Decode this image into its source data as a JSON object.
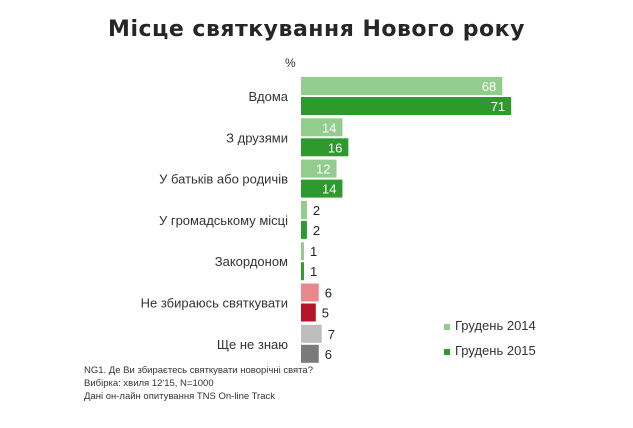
{
  "chart_data": {
    "type": "bar",
    "orientation": "horizontal",
    "title": "Місце святкування Нового року",
    "unit_label": "%",
    "categories": [
      "Вдома",
      "З друзями",
      "У батьків або родичів",
      "У громадському місці",
      "Закордоном",
      "Не збираюсь святкувати",
      "Ще не знаю"
    ],
    "series": [
      {
        "name": "Грудень 2014",
        "values": [
          68,
          14,
          12,
          2,
          1,
          6,
          7
        ],
        "colors": [
          "#92cd8e",
          "#92cd8e",
          "#92cd8e",
          "#92cd8e",
          "#92cd8e",
          "#e8878d",
          "#bdbdbd"
        ]
      },
      {
        "name": "Грудень 2015",
        "values": [
          71,
          16,
          14,
          2,
          1,
          5,
          6
        ],
        "colors": [
          "#2e9a2e",
          "#2e9a2e",
          "#2e9a2e",
          "#2e9a2e",
          "#2e9a2e",
          "#b5142a",
          "#7a7a7a"
        ]
      }
    ],
    "legend_position": "bottom-right",
    "grid": false
  },
  "legend": {
    "items": [
      {
        "label": "Грудень 2014",
        "color": "#92cd8e"
      },
      {
        "label": "Грудень 2015",
        "color": "#2e9a2e"
      }
    ]
  },
  "notes": [
    "NG1. Де Ви збираєтесь святкувати новорічні свята?",
    "Вибірка: хвиля 12'15, N=1000",
    "Дані он-лайн опитування TNS On-line Track"
  ]
}
